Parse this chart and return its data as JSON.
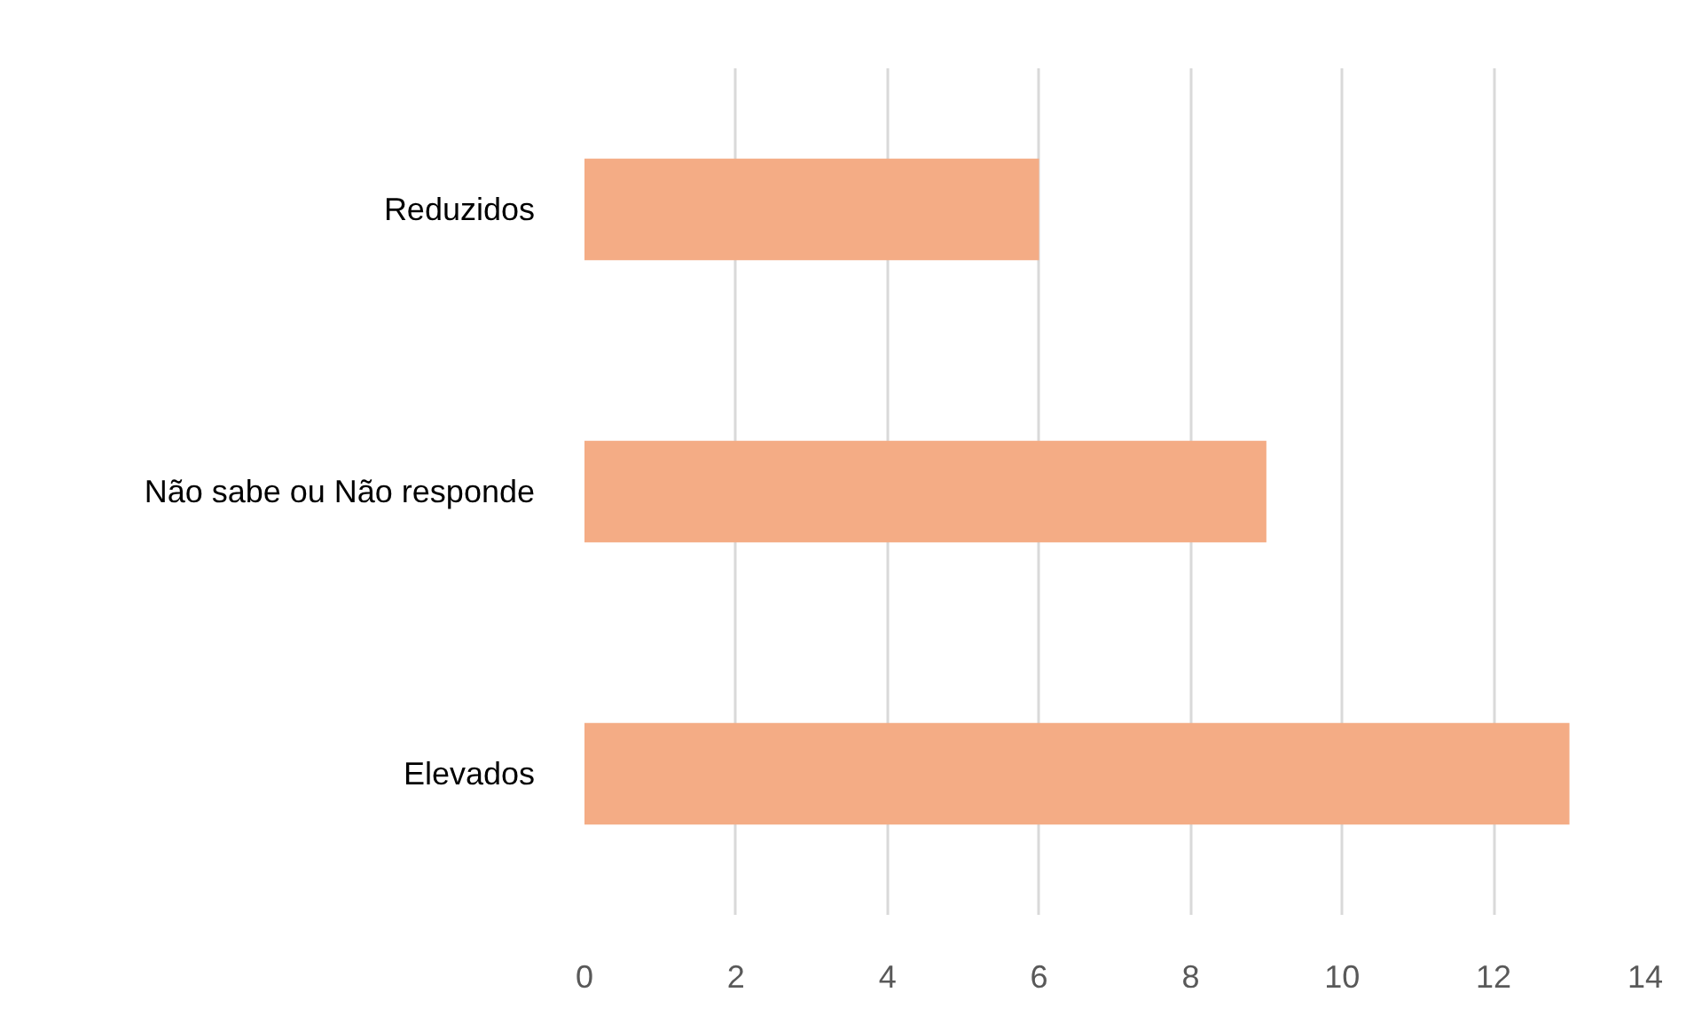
{
  "chart_data": {
    "type": "bar",
    "orientation": "horizontal",
    "categories": [
      "Reduzidos",
      "Não sabe ou Não responde",
      "Elevados"
    ],
    "values": [
      6,
      9,
      13
    ],
    "color": "#f4ac85",
    "xlim": [
      0,
      14
    ],
    "xticks": [
      0,
      2,
      4,
      6,
      8,
      10,
      12,
      14
    ],
    "grid": "x"
  }
}
